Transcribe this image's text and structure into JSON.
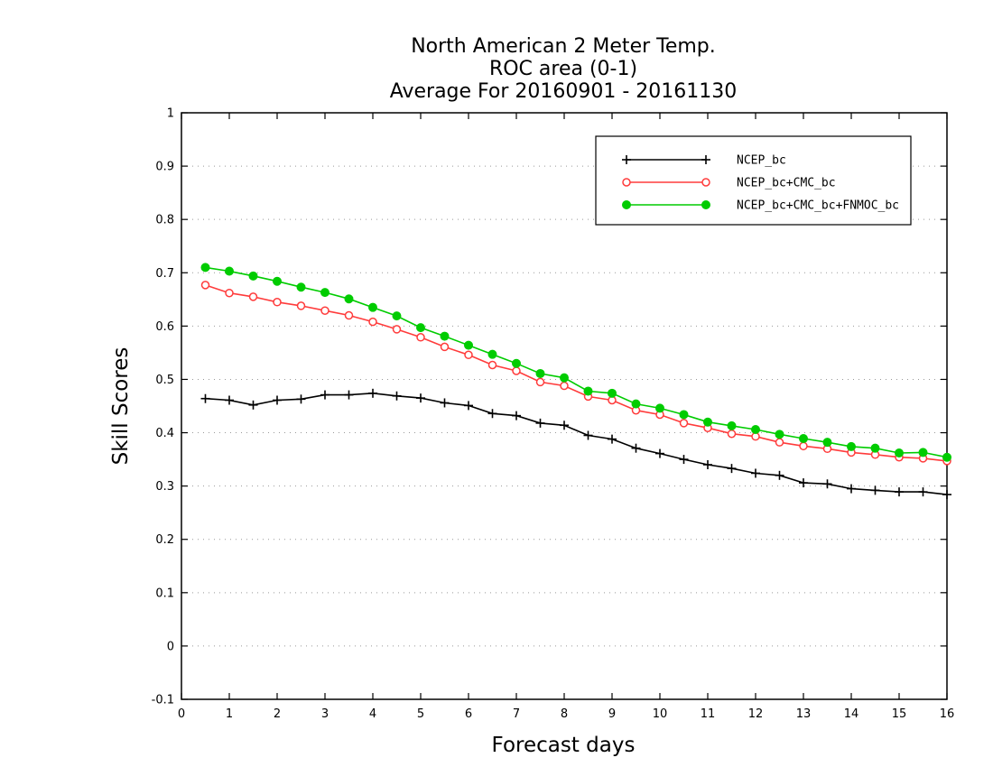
{
  "chart_data": {
    "type": "line",
    "title_lines": [
      "North American 2 Meter Temp.",
      "ROC area (0-1)",
      "Average For 20160901 - 20161130"
    ],
    "xlabel": "Forecast days",
    "ylabel": "Skill Scores",
    "xlim": [
      0,
      16
    ],
    "ylim": [
      -0.1,
      1
    ],
    "xticks": [
      "0",
      "1",
      "2",
      "3",
      "4",
      "5",
      "6",
      "7",
      "8",
      "9",
      "10",
      "11",
      "12",
      "13",
      "14",
      "15",
      "16"
    ],
    "yticks": [
      "-0.1",
      "0",
      "0.1",
      "0.2",
      "0.3",
      "0.4",
      "0.5",
      "0.6",
      "0.7",
      "0.8",
      "0.9",
      "1"
    ],
    "grid": "horizontal dotted",
    "legend_position": "top-right",
    "x": [
      0.5,
      1,
      1.5,
      2,
      2.5,
      3,
      3.5,
      4,
      4.5,
      5,
      5.5,
      6,
      6.5,
      7,
      7.5,
      8,
      8.5,
      9,
      9.5,
      10,
      10.5,
      11,
      11.5,
      12,
      12.5,
      13,
      13.5,
      14,
      14.5,
      15,
      15.5,
      16
    ],
    "series": [
      {
        "name": "NCEP_bc",
        "color": "#000000",
        "marker": "plus",
        "values": [
          0.464,
          0.461,
          0.452,
          0.461,
          0.463,
          0.471,
          0.471,
          0.474,
          0.469,
          0.465,
          0.456,
          0.451,
          0.436,
          0.432,
          0.418,
          0.414,
          0.395,
          0.388,
          0.371,
          0.361,
          0.35,
          0.34,
          0.333,
          0.324,
          0.32,
          0.306,
          0.304,
          0.295,
          0.292,
          0.289,
          0.289,
          0.284
        ]
      },
      {
        "name": "NCEP_bc+CMC_bc",
        "color": "#ff3b3b",
        "marker": "open-circle",
        "values": [
          0.677,
          0.662,
          0.655,
          0.645,
          0.638,
          0.629,
          0.62,
          0.608,
          0.594,
          0.579,
          0.561,
          0.546,
          0.527,
          0.516,
          0.495,
          0.488,
          0.468,
          0.461,
          0.442,
          0.434,
          0.418,
          0.409,
          0.398,
          0.393,
          0.382,
          0.375,
          0.37,
          0.363,
          0.359,
          0.354,
          0.352,
          0.347
        ]
      },
      {
        "name": "NCEP_bc+CMC_bc+FNMOC_bc",
        "color": "#00cc00",
        "marker": "filled-circle",
        "values": [
          0.71,
          0.703,
          0.694,
          0.684,
          0.673,
          0.663,
          0.651,
          0.635,
          0.619,
          0.597,
          0.581,
          0.564,
          0.547,
          0.53,
          0.511,
          0.503,
          0.478,
          0.474,
          0.454,
          0.446,
          0.434,
          0.42,
          0.413,
          0.406,
          0.397,
          0.389,
          0.382,
          0.374,
          0.371,
          0.362,
          0.363,
          0.354
        ]
      }
    ]
  }
}
